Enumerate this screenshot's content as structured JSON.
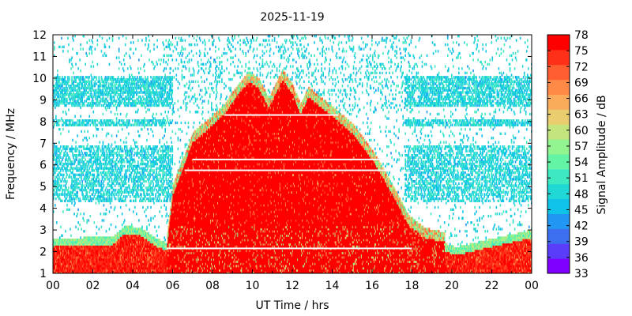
{
  "chart_data": {
    "type": "heatmap",
    "title": "2025-11-19",
    "xlabel": "UT Time / hrs",
    "ylabel": "Frequency / MHz",
    "xlim": [
      0,
      24
    ],
    "ylim": [
      1,
      12
    ],
    "x_ticks": [
      "00",
      "02",
      "04",
      "06",
      "08",
      "10",
      "12",
      "14",
      "16",
      "18",
      "20",
      "22",
      "00"
    ],
    "x_tick_values": [
      0,
      2,
      4,
      6,
      8,
      10,
      12,
      14,
      16,
      18,
      20,
      22,
      24
    ],
    "y_ticks": [
      "1",
      "2",
      "3",
      "4",
      "5",
      "6",
      "7",
      "8",
      "9",
      "10",
      "11",
      "12"
    ],
    "y_tick_values": [
      1,
      2,
      3,
      4,
      5,
      6,
      7,
      8,
      9,
      10,
      11,
      12
    ],
    "grid": false,
    "colorbar": {
      "label": "Signal Amplitude / dB",
      "min": 33,
      "max": 78,
      "ticks": [
        "33",
        "36",
        "39",
        "42",
        "45",
        "48",
        "51",
        "54",
        "57",
        "60",
        "63",
        "66",
        "69",
        "72",
        "75",
        "78"
      ],
      "tick_values": [
        33,
        36,
        39,
        42,
        45,
        48,
        51,
        54,
        57,
        60,
        63,
        66,
        69,
        72,
        75,
        78
      ],
      "colors": [
        "#8000ff",
        "#5a3dfa",
        "#3b6ff0",
        "#2196f3",
        "#0ec2e8",
        "#1fd8d6",
        "#3ee8c0",
        "#63f5a5",
        "#93f590",
        "#c4e57d",
        "#e9cd6e",
        "#fbab5c",
        "#ff8a48",
        "#ff5e30",
        "#ff3018",
        "#ff0000"
      ]
    },
    "envelope_note": "daytime saturation region (>=75 dB) upper frequency edge, MHz",
    "envelope": [
      {
        "t": 5.7,
        "f": 2.2
      },
      {
        "t": 6.0,
        "f": 4.6
      },
      {
        "t": 6.5,
        "f": 5.8
      },
      {
        "t": 7.0,
        "f": 7.0
      },
      {
        "t": 8.0,
        "f": 7.8
      },
      {
        "t": 8.6,
        "f": 8.3
      },
      {
        "t": 9.0,
        "f": 8.9
      },
      {
        "t": 9.8,
        "f": 9.8
      },
      {
        "t": 10.3,
        "f": 9.5
      },
      {
        "t": 10.8,
        "f": 8.6
      },
      {
        "t": 11.5,
        "f": 9.9
      },
      {
        "t": 12.0,
        "f": 9.2
      },
      {
        "t": 12.4,
        "f": 8.3
      },
      {
        "t": 12.8,
        "f": 9.1
      },
      {
        "t": 13.3,
        "f": 8.7
      },
      {
        "t": 14.0,
        "f": 8.2
      },
      {
        "t": 15.0,
        "f": 7.4
      },
      {
        "t": 16.0,
        "f": 6.2
      },
      {
        "t": 17.0,
        "f": 4.6
      },
      {
        "t": 17.8,
        "f": 3.2
      },
      {
        "t": 18.6,
        "f": 2.6
      },
      {
        "t": 19.6,
        "f": 2.4
      }
    ],
    "night_low_band_note": "red noise band near the bottom (>=72 dB), upper edge MHz",
    "night_low_band": [
      {
        "t": 0,
        "f": 2.2
      },
      {
        "t": 3.0,
        "f": 2.3
      },
      {
        "t": 3.6,
        "f": 2.8
      },
      {
        "t": 4.4,
        "f": 2.7
      },
      {
        "t": 5.2,
        "f": 2.2
      },
      {
        "t": 5.7,
        "f": 2.0
      },
      {
        "t": 19.6,
        "f": 2.0
      },
      {
        "t": 20.2,
        "f": 1.8
      },
      {
        "t": 22,
        "f": 2.2
      },
      {
        "t": 24,
        "f": 2.6
      }
    ]
  }
}
